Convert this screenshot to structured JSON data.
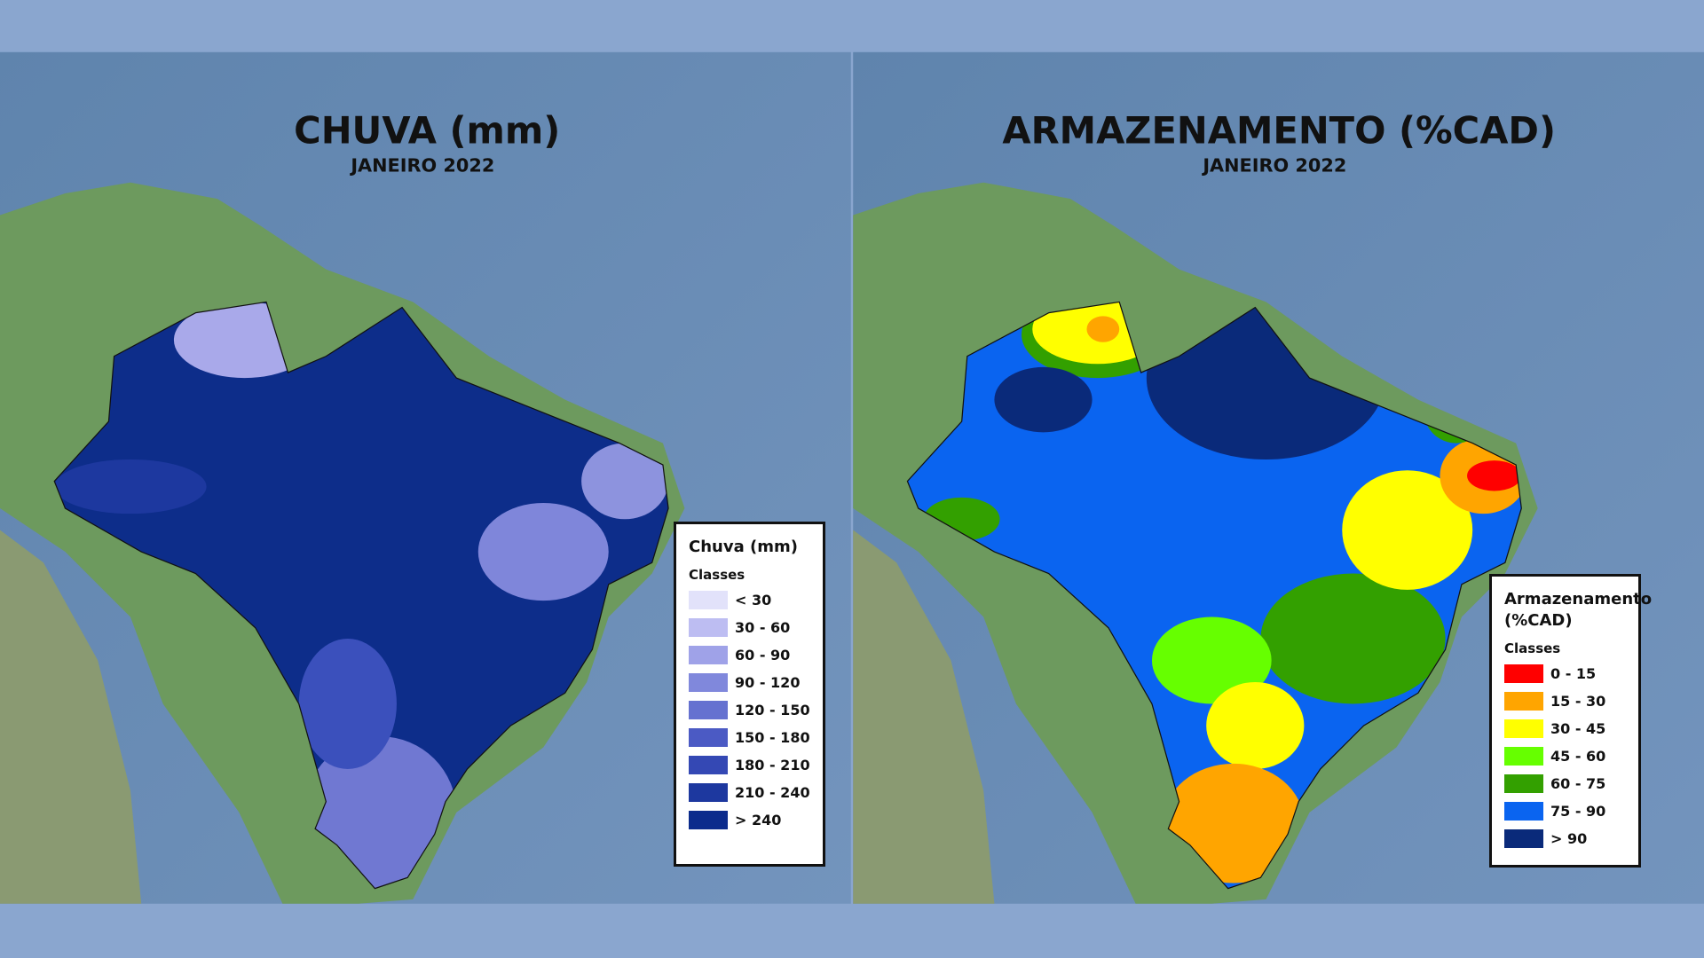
{
  "maps": [
    {
      "title": "CHUVA (mm)",
      "subtitle": "JANEIRO 2022",
      "legend": {
        "title": "Chuva (mm)",
        "subtitle": "Classes",
        "classes": [
          {
            "label": "< 30",
            "color": "#e2e2fa"
          },
          {
            "label": "30 - 60",
            "color": "#bdbdf2"
          },
          {
            "label": "60 - 90",
            "color": "#9fa2e8"
          },
          {
            "label": "90 - 120",
            "color": "#8088dc"
          },
          {
            "label": "120 - 150",
            "color": "#6571d0"
          },
          {
            "label": "150 - 180",
            "color": "#4b5ac4"
          },
          {
            "label": "180 - 210",
            "color": "#3448b4"
          },
          {
            "label": "210 - 240",
            "color": "#1d389f"
          },
          {
            "label": "> 240",
            "color": "#0b2b8c"
          }
        ]
      }
    },
    {
      "title": "ARMAZENAMENTO (%CAD)",
      "subtitle": "JANEIRO 2022",
      "legend": {
        "title": "Armazenamento (%CAD)",
        "subtitle": "Classes",
        "classes": [
          {
            "label": "0 - 15",
            "color": "#ff0000"
          },
          {
            "label": "15 - 30",
            "color": "#ffa500"
          },
          {
            "label": "30 - 45",
            "color": "#ffff00"
          },
          {
            "label": "45 - 60",
            "color": "#66ff00"
          },
          {
            "label": "60 - 75",
            "color": "#33a000"
          },
          {
            "label": "75 - 90",
            "color": "#0a64f0"
          },
          {
            "label": "> 90",
            "color": "#0a2a7a"
          }
        ]
      }
    }
  ]
}
